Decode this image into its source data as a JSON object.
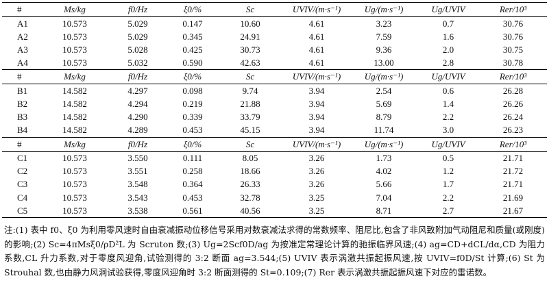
{
  "table": {
    "headers": [
      "#",
      "Ms/kg",
      "f0/Hz",
      "ξ0/%",
      "Sc",
      "UVIV/(m·s⁻¹)",
      "Ug/(m·s⁻¹)",
      "Ug/UVIV",
      "Rer/10³"
    ],
    "groups": [
      {
        "rows": [
          [
            "A1",
            "10.573",
            "5.029",
            "0.147",
            "10.60",
            "4.61",
            "3.23",
            "0.7",
            "30.76"
          ],
          [
            "A2",
            "10.573",
            "5.029",
            "0.345",
            "24.91",
            "4.61",
            "7.59",
            "1.6",
            "30.76"
          ],
          [
            "A3",
            "10.573",
            "5.028",
            "0.425",
            "30.73",
            "4.61",
            "9.36",
            "2.0",
            "30.75"
          ],
          [
            "A4",
            "10.573",
            "5.032",
            "0.590",
            "42.63",
            "4.61",
            "13.00",
            "2.8",
            "30.78"
          ]
        ]
      },
      {
        "rows": [
          [
            "B1",
            "14.582",
            "4.297",
            "0.098",
            "9.74",
            "3.94",
            "2.54",
            "0.6",
            "26.28"
          ],
          [
            "B2",
            "14.582",
            "4.294",
            "0.219",
            "21.88",
            "3.94",
            "5.69",
            "1.4",
            "26.26"
          ],
          [
            "B3",
            "14.582",
            "4.290",
            "0.339",
            "33.79",
            "3.94",
            "8.79",
            "2.2",
            "26.24"
          ],
          [
            "B4",
            "14.582",
            "4.289",
            "0.453",
            "45.15",
            "3.94",
            "11.74",
            "3.0",
            "26.23"
          ]
        ]
      },
      {
        "rows": [
          [
            "C1",
            "10.573",
            "3.550",
            "0.111",
            "8.05",
            "3.26",
            "1.73",
            "0.5",
            "21.71"
          ],
          [
            "C2",
            "10.573",
            "3.551",
            "0.258",
            "18.66",
            "3.26",
            "4.02",
            "1.2",
            "21.72"
          ],
          [
            "C3",
            "10.573",
            "3.548",
            "0.364",
            "26.33",
            "3.26",
            "5.66",
            "1.7",
            "21.71"
          ],
          [
            "C4",
            "10.573",
            "3.543",
            "0.453",
            "32.78",
            "3.25",
            "7.04",
            "2.2",
            "21.69"
          ],
          [
            "C5",
            "10.573",
            "3.538",
            "0.561",
            "40.56",
            "3.25",
            "8.71",
            "2.7",
            "21.67"
          ]
        ]
      }
    ]
  },
  "notes": "注:(1) 表中 f0、ξ0 为利用零风速时自由衰减振动位移信号采用对数衰减法求得的常数频率、阻尼比,包含了非风致附加气动阻尼和质量(或刚度)的影响;(2) Sc=4πMsξ0/ρD²L 为 Scruton 数;(3) Ug=2Scf0D/ag 为按准定常理论计算的驰振临界风速;(4) ag=CD+dCL/dα,CD 为阻力系数,CL 升力系数,对于零度风迎角,试验测得的 3:2 断面 ag=3.544;(5) UVIV 表示涡激共振起振风速,按 UVIV=f0D/St 计算;(6) St 为 Strouhal 数,也由静力风洞试验获得,零度风迎角时 3:2 断面测得的 St=0.109;(7) Rer 表示涡激共振起振风速下对应的雷诺数。"
}
